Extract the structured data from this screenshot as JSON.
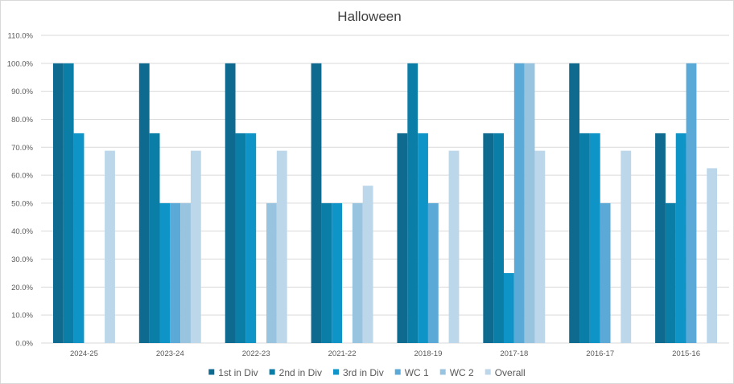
{
  "chart_data": {
    "type": "bar",
    "title": "Halloween",
    "xlabel": "",
    "ylabel": "",
    "categories": [
      "2024-25",
      "2023-24",
      "2022-23",
      "2021-22",
      "2018-19",
      "2017-18",
      "2016-17",
      "2015-16"
    ],
    "series": [
      {
        "name": "1st in Div",
        "color": "#0e6a8e",
        "values": [
          100,
          100,
          100,
          100,
          75,
          75,
          100,
          75
        ]
      },
      {
        "name": "2nd in Div",
        "color": "#0b7ea8",
        "values": [
          100,
          75,
          75,
          50,
          100,
          75,
          75,
          50
        ]
      },
      {
        "name": "3rd in Div",
        "color": "#0f94c8",
        "values": [
          75,
          50,
          75,
          50,
          75,
          25,
          75,
          75
        ]
      },
      {
        "name": "WC 1",
        "color": "#5aa9d6",
        "values": [
          0,
          50,
          0,
          0,
          50,
          100,
          50,
          100
        ]
      },
      {
        "name": "WC 2",
        "color": "#99c4e0",
        "values": [
          0,
          50,
          50,
          50,
          0,
          100,
          0,
          0
        ]
      },
      {
        "name": "Overall",
        "color": "#bcd7ea",
        "values": [
          68.75,
          68.75,
          68.75,
          56.25,
          68.75,
          68.75,
          68.75,
          62.5
        ]
      }
    ],
    "y_ticks": [
      "0.0%",
      "10.0%",
      "20.0%",
      "30.0%",
      "40.0%",
      "50.0%",
      "60.0%",
      "70.0%",
      "80.0%",
      "90.0%",
      "100.0%",
      "110.0%"
    ],
    "ylim": [
      0,
      110
    ],
    "grid": true,
    "legend_position": "bottom",
    "gridline_color": "#d9d9d9"
  }
}
